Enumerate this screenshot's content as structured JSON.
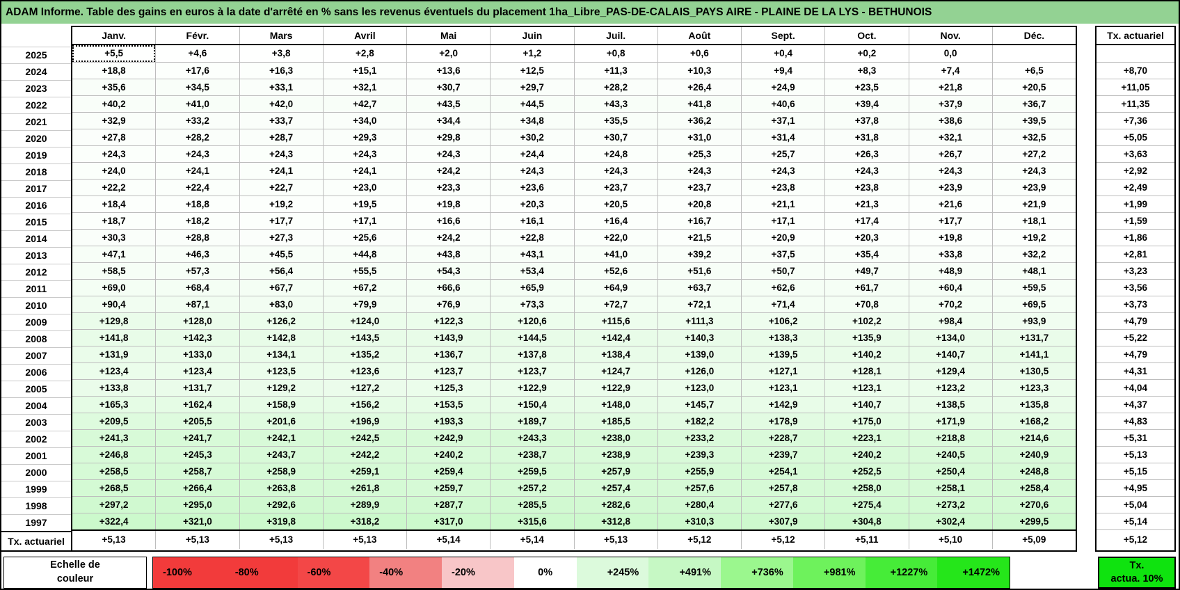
{
  "title": "ADAM Informe. Table des gains en euros à la date d'arrêté en % sans les revenus éventuels du placement 1ha_Libre_PAS-DE-CALAIS_PAYS AIRE - PLAINE DE LA LYS - BETHUNOIS",
  "months": [
    "Janv.",
    "Févr.",
    "Mars",
    "Avril",
    "Mai",
    "Juin",
    "Juil.",
    "Août",
    "Sept.",
    "Oct.",
    "Nov.",
    "Déc."
  ],
  "tx_header": "Tx. actuariel",
  "rows": [
    {
      "year": "2025",
      "values": [
        "+5,5",
        "+4,6",
        "+3,8",
        "+2,8",
        "+2,0",
        "+1,2",
        "+0,8",
        "+0,6",
        "+0,4",
        "+0,2",
        "0,0",
        ""
      ],
      "tx": ""
    },
    {
      "year": "2024",
      "values": [
        "+18,8",
        "+17,6",
        "+16,3",
        "+15,1",
        "+13,6",
        "+12,5",
        "+11,3",
        "+10,3",
        "+9,4",
        "+8,3",
        "+7,4",
        "+6,5"
      ],
      "tx": "+8,70"
    },
    {
      "year": "2023",
      "values": [
        "+35,6",
        "+34,5",
        "+33,1",
        "+32,1",
        "+30,7",
        "+29,7",
        "+28,2",
        "+26,4",
        "+24,9",
        "+23,5",
        "+21,8",
        "+20,5"
      ],
      "tx": "+11,05"
    },
    {
      "year": "2022",
      "values": [
        "+40,2",
        "+41,0",
        "+42,0",
        "+42,7",
        "+43,5",
        "+44,5",
        "+43,3",
        "+41,8",
        "+40,6",
        "+39,4",
        "+37,9",
        "+36,7"
      ],
      "tx": "+11,35"
    },
    {
      "year": "2021",
      "values": [
        "+32,9",
        "+33,2",
        "+33,7",
        "+34,0",
        "+34,4",
        "+34,8",
        "+35,5",
        "+36,2",
        "+37,1",
        "+37,8",
        "+38,6",
        "+39,5"
      ],
      "tx": "+7,36"
    },
    {
      "year": "2020",
      "values": [
        "+27,8",
        "+28,2",
        "+28,7",
        "+29,3",
        "+29,8",
        "+30,2",
        "+30,7",
        "+31,0",
        "+31,4",
        "+31,8",
        "+32,1",
        "+32,5"
      ],
      "tx": "+5,05"
    },
    {
      "year": "2019",
      "values": [
        "+24,3",
        "+24,3",
        "+24,3",
        "+24,3",
        "+24,3",
        "+24,4",
        "+24,8",
        "+25,3",
        "+25,7",
        "+26,3",
        "+26,7",
        "+27,2"
      ],
      "tx": "+3,63"
    },
    {
      "year": "2018",
      "values": [
        "+24,0",
        "+24,1",
        "+24,1",
        "+24,1",
        "+24,2",
        "+24,3",
        "+24,3",
        "+24,3",
        "+24,3",
        "+24,3",
        "+24,3",
        "+24,3"
      ],
      "tx": "+2,92"
    },
    {
      "year": "2017",
      "values": [
        "+22,2",
        "+22,4",
        "+22,7",
        "+23,0",
        "+23,3",
        "+23,6",
        "+23,7",
        "+23,7",
        "+23,8",
        "+23,8",
        "+23,9",
        "+23,9"
      ],
      "tx": "+2,49"
    },
    {
      "year": "2016",
      "values": [
        "+18,4",
        "+18,8",
        "+19,2",
        "+19,5",
        "+19,8",
        "+20,3",
        "+20,5",
        "+20,8",
        "+21,1",
        "+21,3",
        "+21,6",
        "+21,9"
      ],
      "tx": "+1,99"
    },
    {
      "year": "2015",
      "values": [
        "+18,7",
        "+18,2",
        "+17,7",
        "+17,1",
        "+16,6",
        "+16,1",
        "+16,4",
        "+16,7",
        "+17,1",
        "+17,4",
        "+17,7",
        "+18,1"
      ],
      "tx": "+1,59"
    },
    {
      "year": "2014",
      "values": [
        "+30,3",
        "+28,8",
        "+27,3",
        "+25,6",
        "+24,2",
        "+22,8",
        "+22,0",
        "+21,5",
        "+20,9",
        "+20,3",
        "+19,8",
        "+19,2"
      ],
      "tx": "+1,86"
    },
    {
      "year": "2013",
      "values": [
        "+47,1",
        "+46,3",
        "+45,5",
        "+44,8",
        "+43,8",
        "+43,1",
        "+41,0",
        "+39,2",
        "+37,5",
        "+35,4",
        "+33,8",
        "+32,2"
      ],
      "tx": "+2,81"
    },
    {
      "year": "2012",
      "values": [
        "+58,5",
        "+57,3",
        "+56,4",
        "+55,5",
        "+54,3",
        "+53,4",
        "+52,6",
        "+51,6",
        "+50,7",
        "+49,7",
        "+48,9",
        "+48,1"
      ],
      "tx": "+3,23"
    },
    {
      "year": "2011",
      "values": [
        "+69,0",
        "+68,4",
        "+67,7",
        "+67,2",
        "+66,6",
        "+65,9",
        "+64,9",
        "+63,7",
        "+62,6",
        "+61,7",
        "+60,4",
        "+59,5"
      ],
      "tx": "+3,56"
    },
    {
      "year": "2010",
      "values": [
        "+90,4",
        "+87,1",
        "+83,0",
        "+79,9",
        "+76,9",
        "+73,3",
        "+72,7",
        "+72,1",
        "+71,4",
        "+70,8",
        "+70,2",
        "+69,5"
      ],
      "tx": "+3,73"
    },
    {
      "year": "2009",
      "values": [
        "+129,8",
        "+128,0",
        "+126,2",
        "+124,0",
        "+122,3",
        "+120,6",
        "+115,6",
        "+111,3",
        "+106,2",
        "+102,2",
        "+98,4",
        "+93,9"
      ],
      "tx": "+4,79"
    },
    {
      "year": "2008",
      "values": [
        "+141,8",
        "+142,3",
        "+142,8",
        "+143,5",
        "+143,9",
        "+144,5",
        "+142,4",
        "+140,3",
        "+138,3",
        "+135,9",
        "+134,0",
        "+131,7"
      ],
      "tx": "+5,22"
    },
    {
      "year": "2007",
      "values": [
        "+131,9",
        "+133,0",
        "+134,1",
        "+135,2",
        "+136,7",
        "+137,8",
        "+138,4",
        "+139,0",
        "+139,5",
        "+140,2",
        "+140,7",
        "+141,1"
      ],
      "tx": "+4,79"
    },
    {
      "year": "2006",
      "values": [
        "+123,4",
        "+123,4",
        "+123,5",
        "+123,6",
        "+123,7",
        "+123,7",
        "+124,7",
        "+126,0",
        "+127,1",
        "+128,1",
        "+129,4",
        "+130,5"
      ],
      "tx": "+4,31"
    },
    {
      "year": "2005",
      "values": [
        "+133,8",
        "+131,7",
        "+129,2",
        "+127,2",
        "+125,3",
        "+122,9",
        "+122,9",
        "+123,0",
        "+123,1",
        "+123,1",
        "+123,2",
        "+123,3"
      ],
      "tx": "+4,04"
    },
    {
      "year": "2004",
      "values": [
        "+165,3",
        "+162,4",
        "+158,9",
        "+156,2",
        "+153,5",
        "+150,4",
        "+148,0",
        "+145,7",
        "+142,9",
        "+140,7",
        "+138,5",
        "+135,8"
      ],
      "tx": "+4,37"
    },
    {
      "year": "2003",
      "values": [
        "+209,5",
        "+205,5",
        "+201,6",
        "+196,9",
        "+193,3",
        "+189,7",
        "+185,5",
        "+182,2",
        "+178,9",
        "+175,0",
        "+171,9",
        "+168,2"
      ],
      "tx": "+4,83"
    },
    {
      "year": "2002",
      "values": [
        "+241,3",
        "+241,7",
        "+242,1",
        "+242,5",
        "+242,9",
        "+243,3",
        "+238,0",
        "+233,2",
        "+228,7",
        "+223,1",
        "+218,8",
        "+214,6"
      ],
      "tx": "+5,31"
    },
    {
      "year": "2001",
      "values": [
        "+246,8",
        "+245,3",
        "+243,7",
        "+242,2",
        "+240,2",
        "+238,7",
        "+238,9",
        "+239,3",
        "+239,7",
        "+240,2",
        "+240,5",
        "+240,9"
      ],
      "tx": "+5,13"
    },
    {
      "year": "2000",
      "values": [
        "+258,5",
        "+258,7",
        "+258,9",
        "+259,1",
        "+259,4",
        "+259,5",
        "+257,9",
        "+255,9",
        "+254,1",
        "+252,5",
        "+250,4",
        "+248,8"
      ],
      "tx": "+5,15"
    },
    {
      "year": "1999",
      "values": [
        "+268,5",
        "+266,4",
        "+263,8",
        "+261,8",
        "+259,7",
        "+257,2",
        "+257,4",
        "+257,6",
        "+257,8",
        "+258,0",
        "+258,1",
        "+258,4"
      ],
      "tx": "+4,95"
    },
    {
      "year": "1998",
      "values": [
        "+297,2",
        "+295,0",
        "+292,6",
        "+289,9",
        "+287,7",
        "+285,5",
        "+282,6",
        "+280,4",
        "+277,6",
        "+275,4",
        "+273,2",
        "+270,6"
      ],
      "tx": "+5,04"
    },
    {
      "year": "1997",
      "values": [
        "+322,4",
        "+321,0",
        "+319,8",
        "+318,2",
        "+317,0",
        "+315,6",
        "+312,8",
        "+310,3",
        "+307,9",
        "+304,8",
        "+302,4",
        "+299,5"
      ],
      "tx": "+5,14"
    }
  ],
  "footer_row": {
    "label": "Tx. actuariel",
    "values": [
      "+5,13",
      "+5,13",
      "+5,13",
      "+5,13",
      "+5,14",
      "+5,14",
      "+5,13",
      "+5,12",
      "+5,12",
      "+5,11",
      "+5,10",
      "+5,09"
    ],
    "tx": "+5,12"
  },
  "scale": {
    "label_line1": "Echelle de",
    "label_line2": "couleur",
    "cells": [
      {
        "label": "-100%",
        "color": "#f23b3b"
      },
      {
        "label": "-80%",
        "color": "#f23b3b"
      },
      {
        "label": "-60%",
        "color": "#f34747"
      },
      {
        "label": "-40%",
        "color": "#f28181"
      },
      {
        "label": "-20%",
        "color": "#f8c6c8"
      },
      {
        "label": "0%",
        "color": "#ffffff"
      },
      {
        "label": "+245%",
        "color": "#dcfadc"
      },
      {
        "label": "+491%",
        "color": "#c6f8c4"
      },
      {
        "label": "+736%",
        "color": "#9bf78e"
      },
      {
        "label": "+981%",
        "color": "#6ef25c"
      },
      {
        "label": "+1227%",
        "color": "#46ec38"
      },
      {
        "label": "+1472%",
        "color": "#25e61a"
      }
    ],
    "tx_box": {
      "line1": "Tx.",
      "line2": "actua. 10%",
      "color": "#0fe30f"
    }
  },
  "colors": {
    "title_bg": "#93d293",
    "grid_line": "#bdbdbd",
    "cell_green_max": "#14e214",
    "scale_max_percent": 1472
  }
}
